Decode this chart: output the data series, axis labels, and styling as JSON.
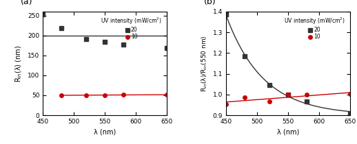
{
  "panel_a": {
    "black_x": [
      450,
      480,
      520,
      550,
      580,
      650
    ],
    "black_y": [
      253,
      219,
      191,
      184,
      177,
      168
    ],
    "red_x": [
      480,
      520,
      550,
      580,
      650
    ],
    "red_y": [
      50,
      50,
      50,
      52,
      51
    ],
    "xlabel": "λ (nm)",
    "ylabel_display": "R$_{in}$(λ) (nm)",
    "xlim": [
      450,
      650
    ],
    "ylim": [
      0,
      260
    ],
    "yticks": [
      0,
      50,
      100,
      150,
      200,
      250
    ],
    "xticks": [
      450,
      500,
      550,
      600,
      650
    ],
    "label": "(a)",
    "legend_title": "UV intensity (mW/cm$^2$)",
    "legend_black": "20",
    "legend_red": "10"
  },
  "panel_b": {
    "black_x": [
      450,
      480,
      520,
      550,
      580,
      650
    ],
    "black_y": [
      1.385,
      1.185,
      1.045,
      1.0,
      0.965,
      0.908
    ],
    "red_x": [
      450,
      480,
      520,
      550,
      580,
      650
    ],
    "red_y": [
      0.952,
      0.985,
      0.965,
      1.0,
      0.998,
      1.002
    ],
    "xlabel": "λ (nm)",
    "ylabel_display": "R$_{in}$(λ)/R$_{in}$(550 nm)",
    "xlim": [
      450,
      650
    ],
    "ylim": [
      0.9,
      1.4
    ],
    "yticks": [
      0.9,
      1.0,
      1.1,
      1.2,
      1.3,
      1.4
    ],
    "xticks": [
      450,
      500,
      550,
      600,
      650
    ],
    "label": "(b)",
    "legend_title": "UV intensity (mW/cm$^2$)",
    "legend_black": "20",
    "legend_red": "10"
  },
  "black_color": "#333333",
  "red_color": "#cc0000",
  "black_marker": "s",
  "red_marker": "o",
  "marker_size": 4,
  "line_width": 1.0,
  "background_color": "#ffffff",
  "axes_bg": "#ffffff"
}
